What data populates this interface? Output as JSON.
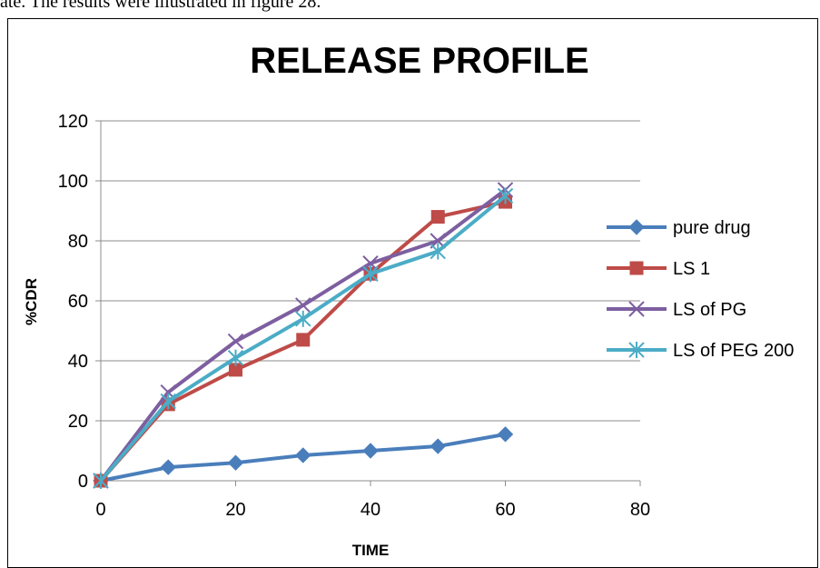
{
  "caption": "ate. The results were illustrated in figure 28.",
  "chart_data": {
    "type": "line",
    "title": "RELEASE PROFILE",
    "xlabel": "TIME",
    "ylabel": "%CDR",
    "xlim": [
      0,
      80
    ],
    "ylim": [
      0,
      120
    ],
    "xticks": [
      0,
      20,
      40,
      60,
      80
    ],
    "yticks": [
      0,
      20,
      40,
      60,
      80,
      100,
      120
    ],
    "grid": "horizontal",
    "legend": "right",
    "series": [
      {
        "name": "pure drug",
        "color": "#4a7ebb",
        "marker": "diamond",
        "x": [
          0,
          10,
          20,
          30,
          40,
          50,
          60
        ],
        "y": [
          0,
          4.5,
          6,
          8.5,
          10,
          11.5,
          15.5
        ]
      },
      {
        "name": "LS 1",
        "color": "#be4b48",
        "marker": "square",
        "x": [
          0,
          10,
          20,
          30,
          40,
          50,
          60
        ],
        "y": [
          0,
          25.5,
          37,
          47,
          69,
          88,
          93
        ]
      },
      {
        "name": "LS of PG",
        "color": "#7d5fa0",
        "marker": "x",
        "x": [
          0,
          10,
          20,
          30,
          40,
          50,
          60
        ],
        "y": [
          0,
          29.5,
          46.5,
          58.5,
          72.5,
          80,
          97
        ]
      },
      {
        "name": "LS of PEG 200",
        "color": "#4bacc6",
        "marker": "star",
        "x": [
          0,
          10,
          20,
          30,
          40,
          50,
          60
        ],
        "y": [
          0,
          26.5,
          41,
          54,
          69,
          76.5,
          95
        ]
      }
    ]
  }
}
